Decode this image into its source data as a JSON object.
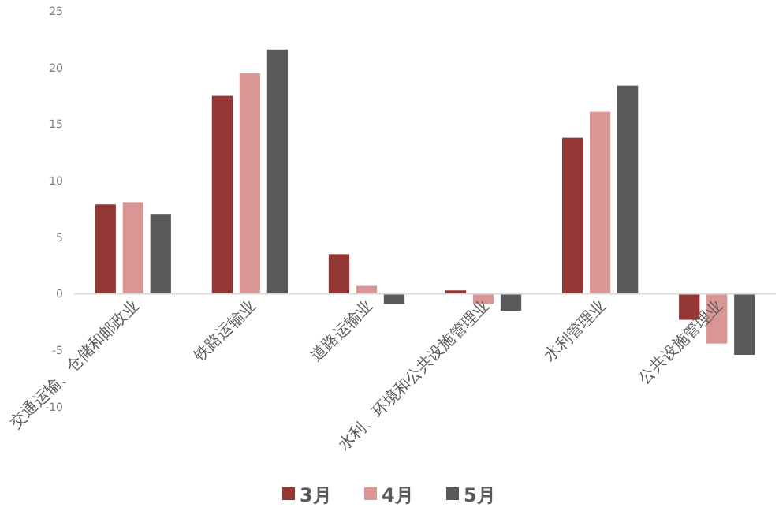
{
  "chart_data": {
    "type": "bar",
    "categories": [
      "交通运输、仓储和邮政业",
      "铁路运输业",
      "道路运输业",
      "水利、环境和公共设施管理业",
      "水利管理业",
      "公共设施管理业"
    ],
    "series": [
      {
        "name": "3月",
        "color": "#943634",
        "values": [
          7.9,
          17.5,
          3.5,
          0.3,
          13.8,
          -2.3
        ]
      },
      {
        "name": "4月",
        "color": "#d99694",
        "values": [
          8.1,
          19.5,
          0.7,
          -0.9,
          16.1,
          -4.4
        ]
      },
      {
        "name": "5月",
        "color": "#595959",
        "values": [
          7.0,
          21.6,
          -0.9,
          -1.5,
          18.4,
          -5.4
        ]
      }
    ],
    "ylim": [
      -10,
      25
    ],
    "yticks": [
      -10,
      -5,
      0,
      5,
      10,
      15,
      20,
      25
    ],
    "grid": false,
    "legend": "bottom"
  }
}
